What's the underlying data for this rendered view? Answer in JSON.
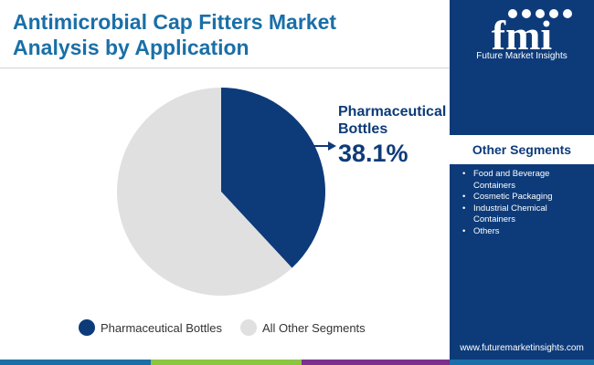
{
  "header": {
    "title_line1": "Antimicrobial Cap Fitters Market",
    "title_line2": "Analysis by Application"
  },
  "brand": {
    "logo_text": "fmi",
    "name": "Future Market Insights",
    "website": "www.futuremarketinsights.com"
  },
  "colors": {
    "title": "#1a6fa8",
    "primary_navy": "#0d3b7a",
    "other_gray": "#e0e0e0",
    "footer_bar": [
      "#1a6fa8",
      "#8cc63f",
      "#7b2f8e",
      "#1a6fa8"
    ]
  },
  "callout": {
    "label_line1": "Pharmaceutical",
    "label_line2": "Bottles",
    "value": "38.1%"
  },
  "chart_data": {
    "type": "pie",
    "slices": [
      {
        "label": "Pharmaceutical Bottles",
        "value": 38.1,
        "color": "#0d3b7a"
      },
      {
        "label": "All Other Segments",
        "value": 61.9,
        "color": "#e0e0e0"
      }
    ],
    "legend_position": "bottom"
  },
  "sidebar": {
    "title": "Other Segments",
    "items": [
      "Food and Beverage Containers",
      "Cosmetic Packaging",
      "Industrial Chemical Containers",
      "Others"
    ]
  }
}
